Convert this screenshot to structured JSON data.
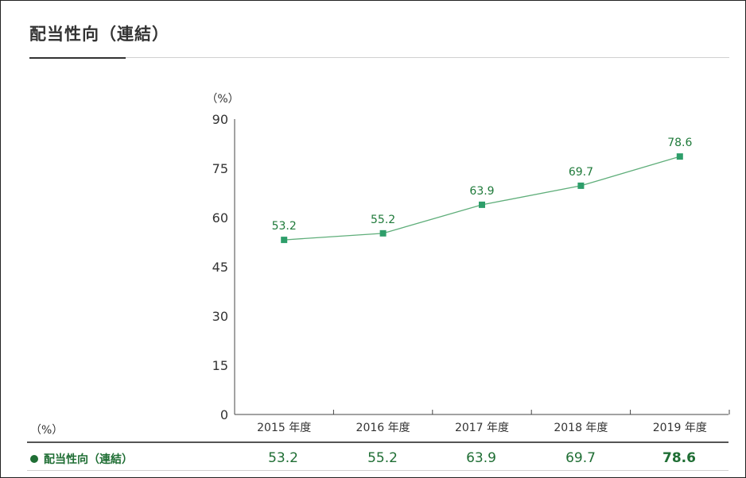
{
  "page_title": "配当性向（連結）",
  "chart_data": {
    "type": "line",
    "unit_label": "（%）",
    "categories": [
      "2015 年度",
      "2016 年度",
      "2017 年度",
      "2018 年度",
      "2019 年度"
    ],
    "series": [
      {
        "name": "配当性向（連結）",
        "values": [
          53.2,
          55.2,
          63.9,
          69.7,
          78.6
        ]
      }
    ],
    "data_labels": [
      "53.2",
      "55.2",
      "63.9",
      "69.7",
      "78.6"
    ],
    "y_ticks": [
      "0",
      "15",
      "30",
      "45",
      "60",
      "75",
      "90"
    ],
    "ylim": [
      0,
      90
    ],
    "grid": false,
    "line_color": "#5fae7a",
    "marker_color": "#2e9e6a",
    "label_color": "#1f7a3a"
  },
  "table": {
    "unit_label": "（%）",
    "row_label": "配当性向（連結）",
    "values": [
      "53.2",
      "55.2",
      "63.9",
      "69.7",
      "78.6"
    ],
    "value_color": "#1f6e34"
  }
}
